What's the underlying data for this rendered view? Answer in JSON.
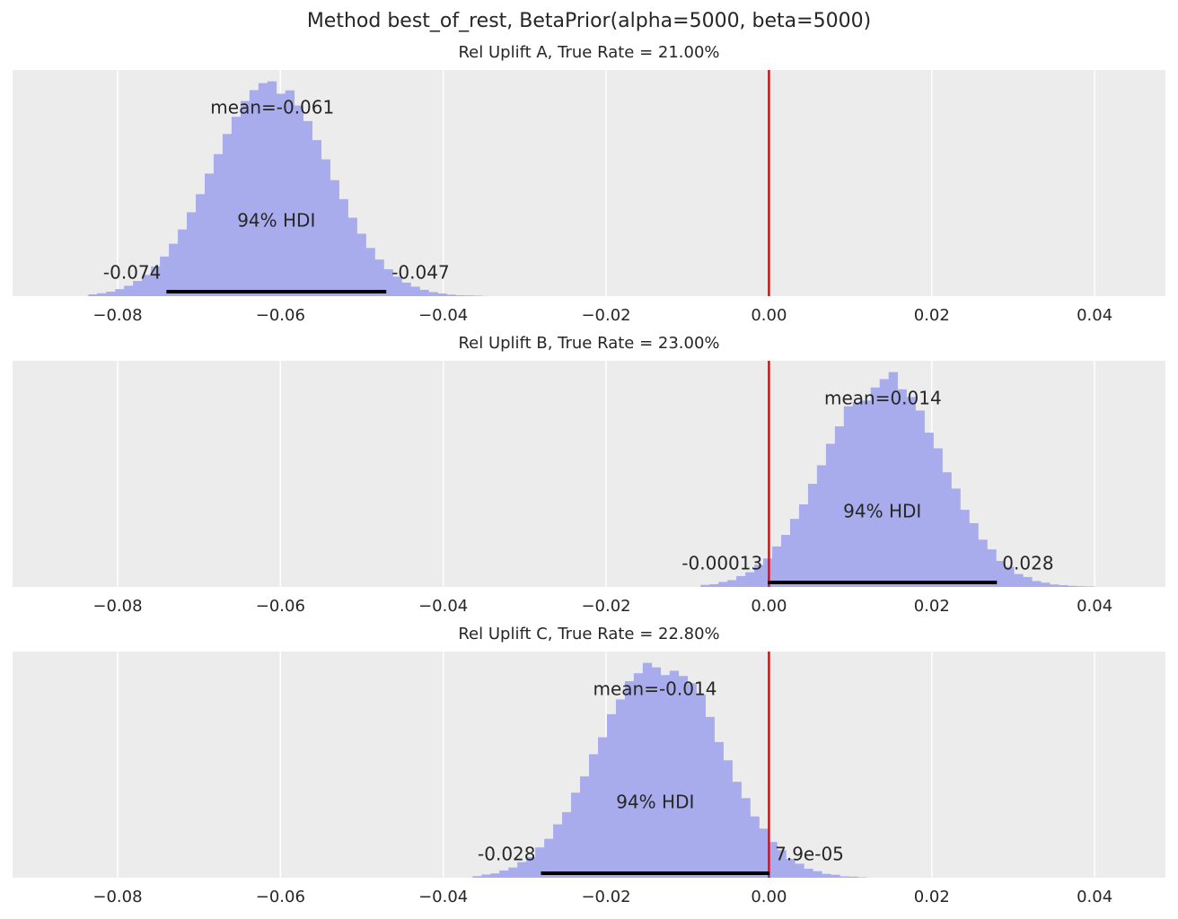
{
  "title": "Method best_of_rest, BetaPrior(alpha=5000, beta=5000)",
  "chart_data": [
    {
      "type": "histogram",
      "title": "Rel Uplift A, True Rate = 21.00%",
      "color": "#a8acec",
      "background": "#ececec",
      "grid": true,
      "xlim": [
        -0.0929,
        0.0487
      ],
      "ylim": [
        0,
        100
      ],
      "xticks": [
        {
          "value": -0.08,
          "label": "−0.08"
        },
        {
          "value": -0.06,
          "label": "−0.06"
        },
        {
          "value": -0.04,
          "label": "−0.04"
        },
        {
          "value": -0.02,
          "label": "−0.02"
        },
        {
          "value": 0,
          "label": "0.00"
        },
        0.02,
        0.04
      ],
      "bins": [
        -0.0836,
        -0.0825,
        -0.0814,
        -0.0803,
        -0.0792,
        -0.0781,
        -0.077,
        -0.0759,
        -0.0748,
        -0.0737,
        -0.0726,
        -0.0715,
        -0.0704,
        -0.0693,
        -0.0682,
        -0.0671,
        -0.066,
        -0.0649,
        -0.0638,
        -0.0627,
        -0.0616,
        -0.0605,
        -0.0594,
        -0.0583,
        -0.0572,
        -0.0561,
        -0.055,
        -0.0539,
        -0.0528,
        -0.0517,
        -0.0506,
        -0.0495,
        -0.0484,
        -0.0473,
        -0.0462,
        -0.0451,
        -0.044,
        -0.0429,
        -0.0418,
        -0.0407,
        -0.0396,
        -0.0385,
        -0.0374,
        -0.0363,
        -0.0352
      ],
      "values": [
        0.8,
        1.3,
        2.0,
        3.1,
        4.6,
        6.7,
        9.4,
        13.1,
        17.5,
        23.2,
        29.5,
        37.1,
        45.1,
        54.2,
        62.8,
        71.7,
        79.3,
        86.3,
        91.1,
        94.2,
        95,
        89.5,
        91,
        84.3,
        77.4,
        69,
        60.5,
        51.3,
        42.9,
        34.7,
        27.6,
        21.3,
        16.2,
        11.9,
        8.6,
        6,
        4.2,
        2.8,
        1.8,
        1.2,
        0.7,
        0.4,
        0.3,
        0.2
      ],
      "mean": -0.061,
      "mean_label": "mean=-0.061",
      "hdi_label": "94% HDI",
      "hdi": [
        -0.074,
        -0.047
      ],
      "hdi_labels": [
        "-0.074",
        "-0.047"
      ],
      "ref_line": {
        "value": 0,
        "color": "#ff0000"
      }
    },
    {
      "type": "histogram",
      "title": "Rel Uplift B, True Rate = 23.00%",
      "color": "#a8acec",
      "background": "#ececec",
      "grid": true,
      "xlim": [
        -0.0929,
        0.0487
      ],
      "ylim": [
        0,
        100
      ],
      "xticks": [
        {
          "value": -0.08,
          "label": "−0.08"
        },
        {
          "value": -0.06,
          "label": "−0.06"
        },
        {
          "value": -0.04,
          "label": "−0.04"
        },
        {
          "value": -0.02,
          "label": "−0.02"
        },
        {
          "value": 0,
          "label": "0.00"
        },
        0.02,
        0.04
      ],
      "bins": [
        -0.0084,
        -0.0073,
        -0.0062,
        -0.0051,
        -0.004,
        -0.0029,
        -0.0018,
        -0.0007,
        0.0004,
        0.0015,
        0.0026,
        0.0037,
        0.0048,
        0.0059,
        0.007,
        0.0081,
        0.0092,
        0.0103,
        0.0114,
        0.0125,
        0.0136,
        0.0147,
        0.0158,
        0.0169,
        0.018,
        0.0191,
        0.0202,
        0.0213,
        0.0224,
        0.0235,
        0.0246,
        0.0257,
        0.0268,
        0.0279,
        0.029,
        0.0301,
        0.0312,
        0.0323,
        0.0334,
        0.0345,
        0.0356,
        0.0367,
        0.0378,
        0.0389,
        0.04
      ],
      "values": [
        0.9,
        1.2,
        2.2,
        3.0,
        4.8,
        6.5,
        9.8,
        12.6,
        17.9,
        23.0,
        30.1,
        36.5,
        45.6,
        53.8,
        63.3,
        71.0,
        79.9,
        81.6,
        82.4,
        88.2,
        91.9,
        95,
        87.4,
        84.0,
        78.0,
        68.2,
        61.3,
        50.7,
        43.5,
        34.1,
        28.2,
        20.9,
        16.6,
        11.5,
        8.9,
        5.7,
        4.4,
        2.6,
        1.9,
        1.1,
        0.8,
        0.5,
        0.3,
        0.2
      ],
      "mean": 0.014,
      "mean_label": "mean=0.014",
      "hdi_label": "94% HDI",
      "hdi": [
        -0.00013,
        0.028
      ],
      "hdi_labels": [
        "-0.00013",
        "0.028"
      ],
      "ref_line": {
        "value": 0,
        "color": "#ff0000"
      }
    },
    {
      "type": "histogram",
      "title": "Rel Uplift C, True Rate = 22.80%",
      "color": "#a8acec",
      "background": "#ececec",
      "grid": true,
      "xlim": [
        -0.0929,
        0.0487
      ],
      "ylim": [
        0,
        100
      ],
      "xticks": [
        {
          "value": -0.08,
          "label": "−0.08"
        },
        {
          "value": -0.06,
          "label": "−0.06"
        },
        {
          "value": -0.04,
          "label": "−0.04"
        },
        {
          "value": -0.02,
          "label": "−0.02"
        },
        {
          "value": 0,
          "label": "0.00"
        },
        0.02,
        0.04
      ],
      "bins": [
        -0.0364,
        -0.0353,
        -0.0342,
        -0.0331,
        -0.032,
        -0.0309,
        -0.0298,
        -0.0287,
        -0.0276,
        -0.0265,
        -0.0254,
        -0.0243,
        -0.0232,
        -0.0221,
        -0.021,
        -0.0199,
        -0.0188,
        -0.0177,
        -0.0166,
        -0.0155,
        -0.0144,
        -0.0133,
        -0.0122,
        -0.0111,
        -0.01,
        -0.0089,
        -0.0078,
        -0.0067,
        -0.0056,
        -0.0045,
        -0.0034,
        -0.0023,
        -0.0012,
        -0.0001,
        0.001,
        0.0021,
        0.0032,
        0.0043,
        0.0054,
        0.0065,
        0.0076,
        0.0087,
        0.0098,
        0.0109,
        0.012
      ],
      "values": [
        0.7,
        1.4,
        1.9,
        3.2,
        4.5,
        6.9,
        9.1,
        13.4,
        17.2,
        23.6,
        29.0,
        37.6,
        44.8,
        54.6,
        62.1,
        72.3,
        78.8,
        86.9,
        90.4,
        95,
        93.0,
        89.6,
        91.5,
        89.2,
        86.0,
        81.0,
        71.1,
        60.0,
        51.9,
        42.4,
        35.2,
        27.1,
        21.7,
        15.8,
        12.2,
        8.3,
        6.2,
        4.0,
        2.9,
        1.7,
        1.3,
        0.6,
        0.5,
        0.2
      ],
      "mean": -0.014,
      "mean_label": "mean=-0.014",
      "hdi_label": "94% HDI",
      "hdi": [
        -0.028,
        7.9e-05
      ],
      "hdi_labels": [
        "-0.028",
        "7.9e-05"
      ],
      "ref_line": {
        "value": 0,
        "color": "#ff0000"
      }
    }
  ]
}
